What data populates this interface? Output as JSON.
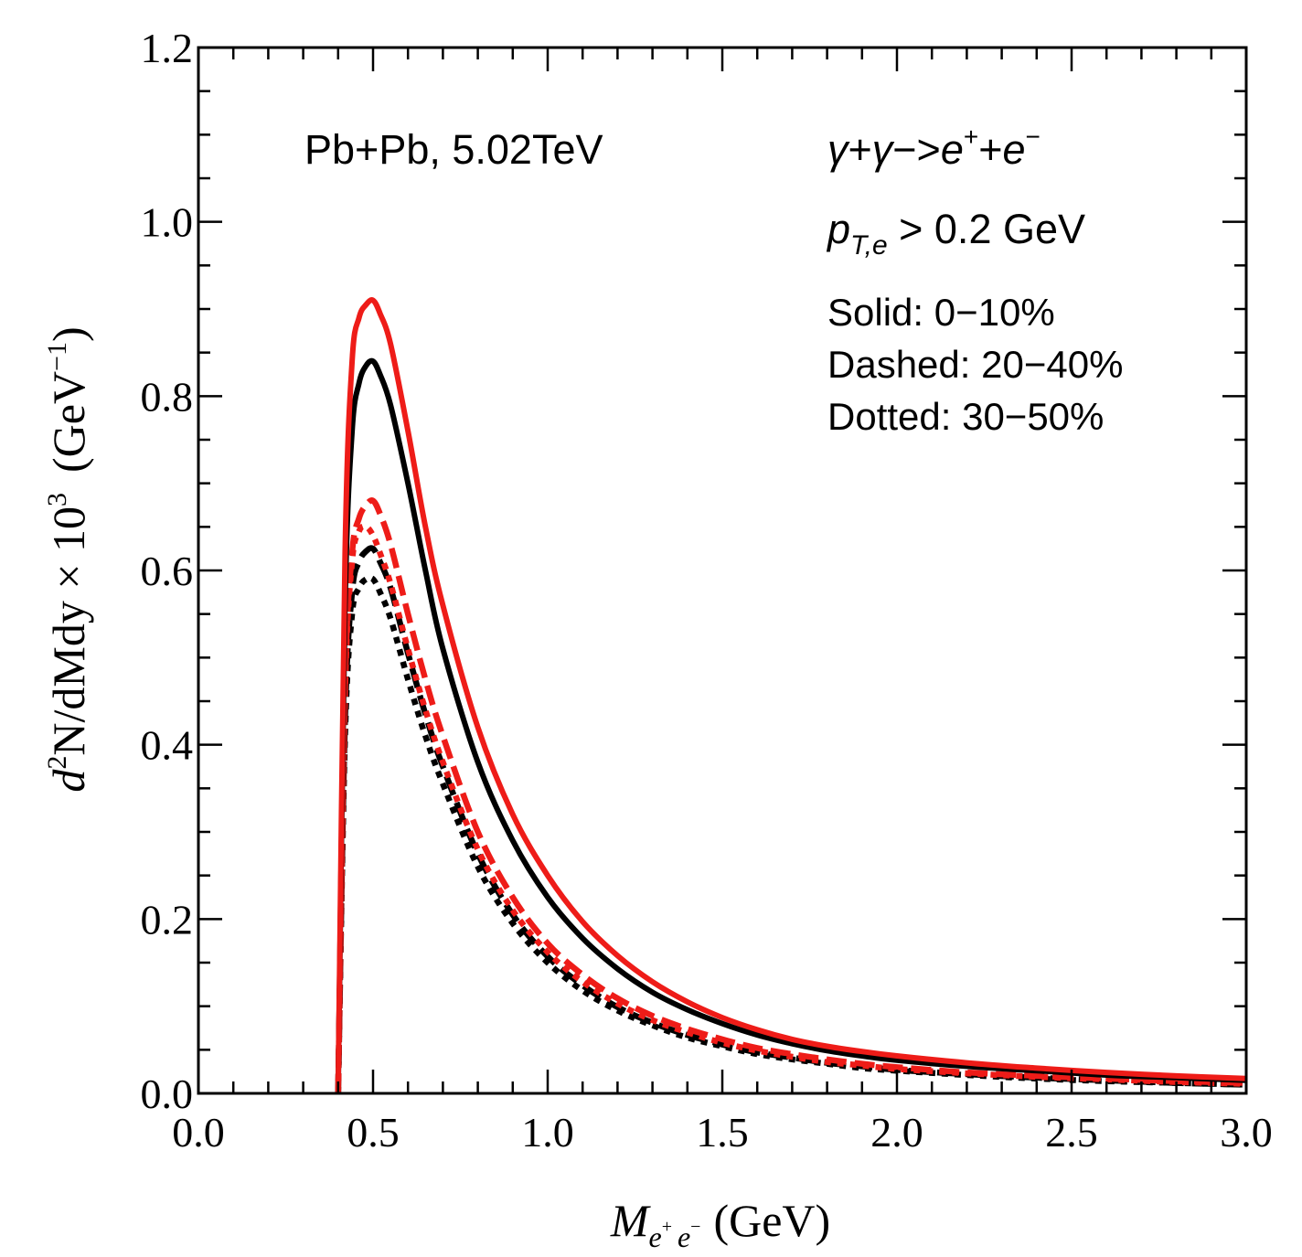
{
  "chart_data": {
    "type": "line",
    "xlim": [
      0.0,
      3.0
    ],
    "ylim": [
      0.0,
      1.2
    ],
    "x_ticks": [
      "0.0",
      "0.5",
      "1.0",
      "1.5",
      "2.0",
      "2.5",
      "3.0"
    ],
    "y_ticks": [
      "0.0",
      "0.2",
      "0.4",
      "0.6",
      "0.8",
      "1.0",
      "1.2"
    ],
    "xlabel": {
      "main": "M",
      "sub1": "e",
      "sup1": "+",
      "sub2": "e",
      "sup2": "−",
      "unit": "(GeV)"
    },
    "ylabel": {
      "d": "d",
      "sup": "2",
      "main": "N/dMdy × 10",
      "exp": "3",
      "unit_open": "(GeV",
      "unit_exp": "−1",
      "unit_close": ")"
    },
    "annotations": {
      "system": "Pb+Pb, 5.02TeV",
      "process": {
        "g1": "γ",
        "plus": "+",
        "g2": "γ",
        "arrow": "−>",
        "e": "e",
        "sup_pos": "+",
        "plus2": "+",
        "e2": "e",
        "sup_neg": "−"
      },
      "cut": {
        "p": "p",
        "sub": "T,e",
        "rest": " > 0.2 GeV"
      },
      "legend": [
        "Solid: 0−10%",
        "Dashed: 20−40%",
        "Dotted: 30−50%"
      ]
    },
    "colors": {
      "red": "#ee1c18",
      "black": "#000000"
    },
    "series": [
      {
        "color": "red",
        "style": "solid",
        "x": [
          0.4,
          0.42,
          0.44,
          0.46,
          0.48,
          0.5,
          0.52,
          0.55,
          0.6,
          0.65,
          0.7,
          0.8,
          0.9,
          1.0,
          1.1,
          1.2,
          1.3,
          1.4,
          1.5,
          1.6,
          1.7,
          1.8,
          1.9,
          2.0,
          2.2,
          2.4,
          2.6,
          2.8,
          3.0
        ],
        "y": [
          0.0,
          0.62,
          0.84,
          0.89,
          0.905,
          0.91,
          0.895,
          0.86,
          0.76,
          0.65,
          0.56,
          0.42,
          0.32,
          0.25,
          0.197,
          0.158,
          0.128,
          0.105,
          0.087,
          0.073,
          0.062,
          0.054,
          0.048,
          0.043,
          0.035,
          0.029,
          0.024,
          0.02,
          0.017
        ]
      },
      {
        "color": "black",
        "style": "solid",
        "x": [
          0.4,
          0.42,
          0.44,
          0.46,
          0.48,
          0.5,
          0.52,
          0.55,
          0.6,
          0.65,
          0.7,
          0.8,
          0.9,
          1.0,
          1.1,
          1.2,
          1.3,
          1.4,
          1.5,
          1.6,
          1.7,
          1.8,
          1.9,
          2.0,
          2.2,
          2.4,
          2.6,
          2.8,
          3.0
        ],
        "y": [
          0.0,
          0.56,
          0.76,
          0.815,
          0.835,
          0.84,
          0.825,
          0.79,
          0.7,
          0.6,
          0.51,
          0.38,
          0.29,
          0.225,
          0.178,
          0.143,
          0.116,
          0.096,
          0.08,
          0.067,
          0.057,
          0.049,
          0.043,
          0.038,
          0.031,
          0.026,
          0.021,
          0.018,
          0.015
        ]
      },
      {
        "color": "red",
        "style": "dashed",
        "x": [
          0.4,
          0.42,
          0.44,
          0.46,
          0.48,
          0.5,
          0.52,
          0.55,
          0.6,
          0.65,
          0.7,
          0.8,
          0.9,
          1.0,
          1.1,
          1.2,
          1.3,
          1.4,
          1.5,
          1.6,
          1.7,
          1.8,
          1.9,
          2.0,
          2.2,
          2.4,
          2.6,
          2.8,
          3.0
        ],
        "y": [
          0.0,
          0.47,
          0.62,
          0.66,
          0.675,
          0.68,
          0.665,
          0.63,
          0.55,
          0.475,
          0.41,
          0.3,
          0.225,
          0.172,
          0.136,
          0.109,
          0.089,
          0.074,
          0.062,
          0.052,
          0.045,
          0.039,
          0.034,
          0.03,
          0.024,
          0.02,
          0.017,
          0.014,
          0.012
        ]
      },
      {
        "color": "black",
        "style": "dashed",
        "x": [
          0.4,
          0.42,
          0.44,
          0.46,
          0.48,
          0.5,
          0.52,
          0.55,
          0.6,
          0.65,
          0.7,
          0.8,
          0.9,
          1.0,
          1.1,
          1.2,
          1.3,
          1.4,
          1.5,
          1.6,
          1.7,
          1.8,
          1.9,
          2.0,
          2.2,
          2.4,
          2.6,
          2.8,
          3.0
        ],
        "y": [
          0.0,
          0.43,
          0.575,
          0.61,
          0.622,
          0.625,
          0.61,
          0.58,
          0.505,
          0.435,
          0.375,
          0.275,
          0.205,
          0.157,
          0.124,
          0.099,
          0.081,
          0.067,
          0.056,
          0.047,
          0.041,
          0.035,
          0.031,
          0.027,
          0.022,
          0.018,
          0.015,
          0.012,
          0.01
        ]
      },
      {
        "color": "red",
        "style": "dotted",
        "x": [
          0.4,
          0.42,
          0.44,
          0.46,
          0.48,
          0.5,
          0.52,
          0.55,
          0.6,
          0.65,
          0.7,
          0.8,
          0.9,
          1.0,
          1.1,
          1.2,
          1.3,
          1.4,
          1.5,
          1.6,
          1.7,
          1.8,
          1.9,
          2.0,
          2.2,
          2.4,
          2.6,
          2.8,
          3.0
        ],
        "y": [
          0.0,
          0.46,
          0.61,
          0.645,
          0.65,
          0.64,
          0.62,
          0.585,
          0.51,
          0.44,
          0.38,
          0.28,
          0.21,
          0.162,
          0.128,
          0.103,
          0.084,
          0.07,
          0.058,
          0.049,
          0.042,
          0.036,
          0.032,
          0.028,
          0.023,
          0.019,
          0.016,
          0.013,
          0.011
        ]
      },
      {
        "color": "black",
        "style": "dotted",
        "x": [
          0.4,
          0.42,
          0.44,
          0.46,
          0.48,
          0.5,
          0.52,
          0.55,
          0.6,
          0.65,
          0.7,
          0.8,
          0.9,
          1.0,
          1.1,
          1.2,
          1.3,
          1.4,
          1.5,
          1.6,
          1.7,
          1.8,
          1.9,
          2.0,
          2.2,
          2.4,
          2.6,
          2.8,
          3.0
        ],
        "y": [
          0.0,
          0.41,
          0.55,
          0.58,
          0.59,
          0.59,
          0.575,
          0.545,
          0.475,
          0.41,
          0.355,
          0.26,
          0.195,
          0.15,
          0.118,
          0.095,
          0.078,
          0.064,
          0.054,
          0.045,
          0.039,
          0.034,
          0.029,
          0.026,
          0.021,
          0.017,
          0.014,
          0.012,
          0.01
        ]
      }
    ]
  }
}
